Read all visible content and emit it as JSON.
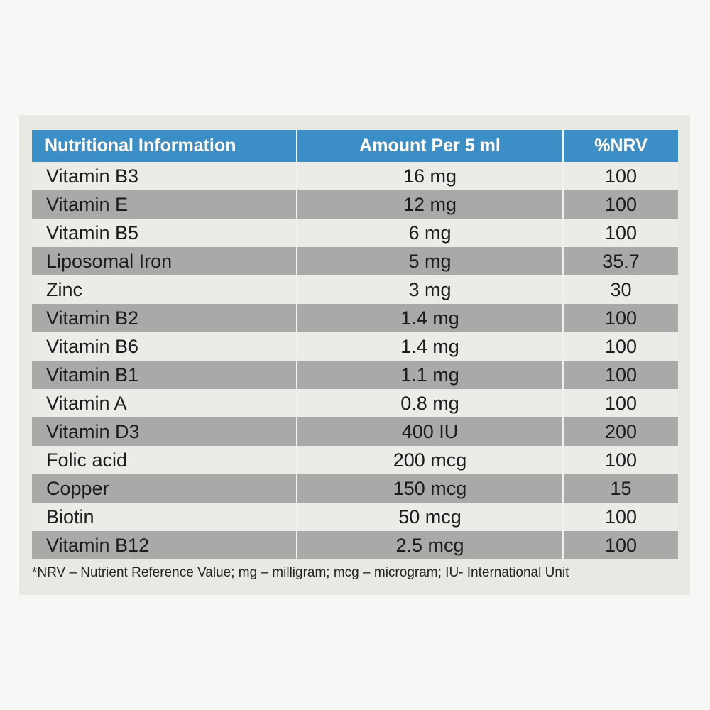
{
  "table": {
    "header": [
      "Nutritional Information",
      "Amount Per 5 ml",
      "%NRV"
    ],
    "rows": [
      [
        "Vitamin B3",
        "16 mg",
        "100"
      ],
      [
        "Vitamin E",
        "12 mg",
        "100"
      ],
      [
        "Vitamin B5",
        "6 mg",
        "100"
      ],
      [
        "Liposomal Iron",
        "5 mg",
        "35.7"
      ],
      [
        "Zinc",
        "3 mg",
        "30"
      ],
      [
        "Vitamin B2",
        "1.4 mg",
        "100"
      ],
      [
        "Vitamin B6",
        "1.4 mg",
        "100"
      ],
      [
        "Vitamin B1",
        "1.1 mg",
        "100"
      ],
      [
        "Vitamin A",
        "0.8 mg",
        "100"
      ],
      [
        "Vitamin D3",
        "400 IU",
        "200"
      ],
      [
        "Folic acid",
        "200 mcg",
        "100"
      ],
      [
        "Copper",
        "150 mcg",
        "15"
      ],
      [
        "Biotin",
        "50 mcg",
        "100"
      ],
      [
        "Vitamin B12",
        "2.5 mcg",
        "100"
      ]
    ],
    "footnote": "*NRV – Nutrient Reference Value; mg – milligram; mcg – microgram; IU- International Unit"
  }
}
